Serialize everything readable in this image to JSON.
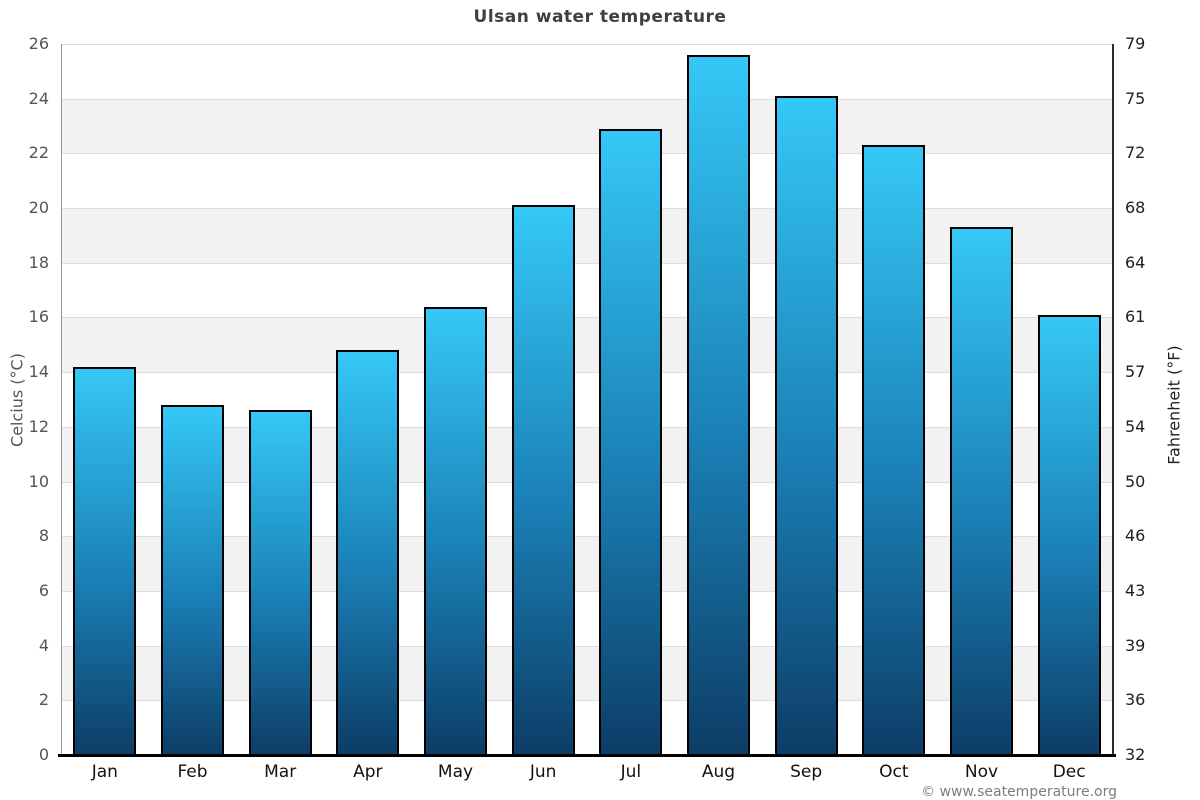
{
  "page": {
    "title": "Ulsan water temperature",
    "footer": "© www.seatemperature.org"
  },
  "chart_data": {
    "type": "bar",
    "title": "Ulsan water temperature",
    "categories": [
      "Jan",
      "Feb",
      "Mar",
      "Apr",
      "May",
      "Jun",
      "Jul",
      "Aug",
      "Sep",
      "Oct",
      "Nov",
      "Dec"
    ],
    "values": [
      14.2,
      12.8,
      12.6,
      14.8,
      16.4,
      20.1,
      22.9,
      25.6,
      24.1,
      22.3,
      19.3,
      16.1
    ],
    "unit": "°C",
    "ylabel_left": "Celcius (°C)",
    "ylabel_right": "Fahrenheit (°F)",
    "ylim": [
      0,
      26
    ],
    "yticks_celsius": [
      0,
      2,
      4,
      6,
      8,
      10,
      12,
      14,
      16,
      18,
      20,
      22,
      24,
      26
    ],
    "yticks_fahrenheit": [
      "32",
      "36",
      "39",
      "43",
      "46",
      "50",
      "54",
      "57",
      "61",
      "64",
      "68",
      "72",
      "75",
      "79"
    ],
    "gray_bands_celsius": [
      [
        2,
        4
      ],
      [
        6,
        8
      ],
      [
        10,
        12
      ],
      [
        14,
        16
      ],
      [
        18,
        20
      ],
      [
        22,
        24
      ]
    ],
    "grid": true,
    "legend": "none",
    "colors": {
      "bar_gradient_top": "#35c8f7",
      "bar_gradient_bottom": "#0d3d66",
      "bar_border": "#000000",
      "plot_band": "#f2f2f2",
      "gridline": "#dedede",
      "title_text": "#3f3f3f",
      "tick_text_left": "#555555",
      "tick_text_right": "#1f1f1f",
      "month_text": "#111111",
      "footer_text": "#7d7d7d"
    }
  }
}
